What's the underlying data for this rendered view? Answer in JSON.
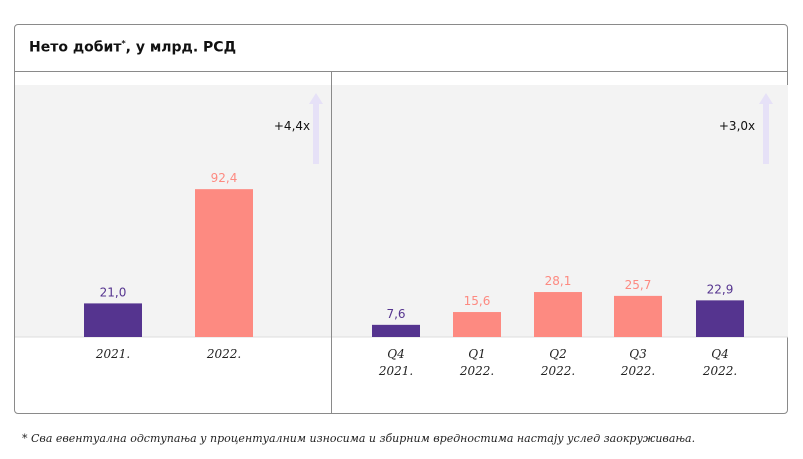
{
  "title": "Нето добит",
  "title_mark": "*",
  "title_suffix": ", у млрд. РСД",
  "footnote": "*  Сва евентуална одступања у процентуалним износима и збирним вредностима настају услед заокруживања.",
  "colors": {
    "dark": "#55348f",
    "light": "#fd8a81",
    "arrow": "#e6e1f7",
    "panel_bg": "#f3f3f3"
  },
  "chart_data": [
    {
      "type": "bar",
      "title": "Нето добит, у млрд. РСД",
      "categories": [
        [
          "2021."
        ],
        [
          "2022."
        ]
      ],
      "values": [
        21.0,
        92.4
      ],
      "value_labels": [
        "21,0",
        "92,4"
      ],
      "bar_colors": [
        "dark",
        "light"
      ],
      "growth_label": "+4,4x",
      "ylim": [
        0,
        100
      ]
    },
    {
      "type": "bar",
      "categories": [
        [
          "Q4",
          "2021."
        ],
        [
          "Q1",
          "2022."
        ],
        [
          "Q2",
          "2022."
        ],
        [
          "Q3",
          "2022."
        ],
        [
          "Q4",
          "2022."
        ]
      ],
      "values": [
        7.6,
        15.6,
        28.1,
        25.7,
        22.9
      ],
      "value_labels": [
        "7,6",
        "15,6",
        "28,1",
        "25,7",
        "22,9"
      ],
      "bar_colors": [
        "dark",
        "light",
        "light",
        "light",
        "dark"
      ],
      "growth_label": "+3,0x",
      "ylim": [
        0,
        30
      ]
    }
  ]
}
